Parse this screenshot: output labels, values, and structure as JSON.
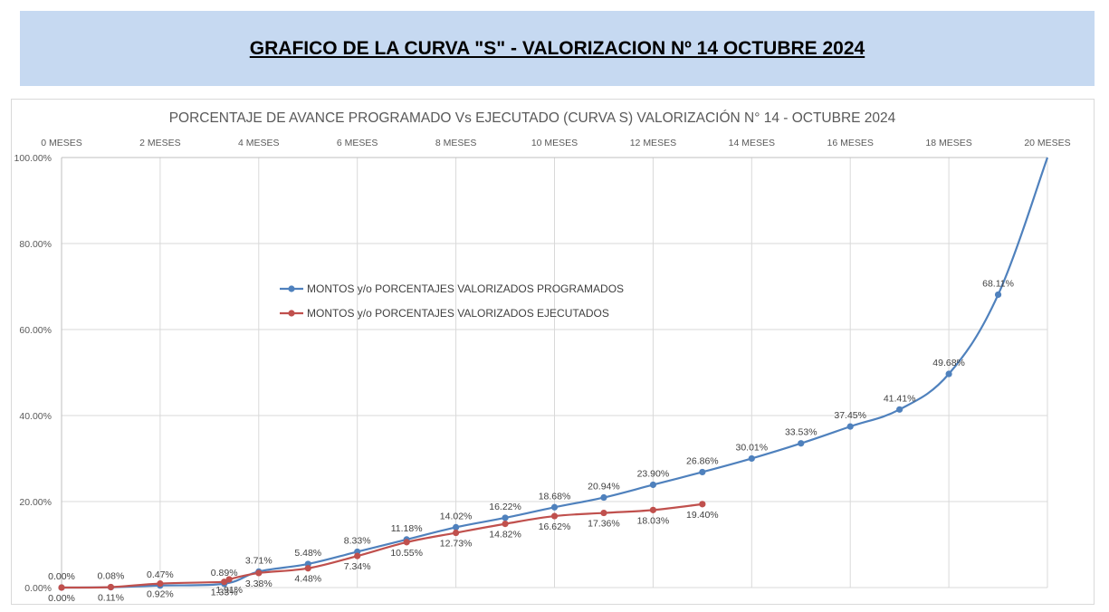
{
  "header": {
    "title": "GRAFICO DE LA CURVA \"S\" - VALORIZACION Nº 14 OCTUBRE 2024"
  },
  "chart_data": {
    "type": "line",
    "title": "PORCENTAJE DE AVANCE PROGRAMADO Vs EJECUTADO (CURVA S) VALORIZACIÓN N° 14 - OCTUBRE 2024",
    "xlabel": "",
    "ylabel": "",
    "x_axis_position": "top",
    "x_ticks": [
      "0 MESES",
      "2 MESES",
      "4 MESES",
      "6 MESES",
      "8 MESES",
      "10 MESES",
      "12 MESES",
      "14 MESES",
      "16 MESES",
      "18 MESES",
      "20 MESES"
    ],
    "x_tick_values": [
      0,
      2,
      4,
      6,
      8,
      10,
      12,
      14,
      16,
      18,
      20
    ],
    "y_ticks": [
      "0.00%",
      "20.00%",
      "40.00%",
      "60.00%",
      "80.00%",
      "100.00%"
    ],
    "y_tick_values": [
      0,
      20,
      40,
      60,
      80,
      100
    ],
    "xlim": [
      0,
      20
    ],
    "ylim": [
      0,
      100
    ],
    "grid": true,
    "legend_position": "upper-left-inside",
    "series": [
      {
        "name": "MONTOS y/o PORCENTAJES VALORIZADOS PROGRAMADOS",
        "color": "#4f81bd",
        "points": [
          {
            "x": 0,
            "y": 0.0,
            "label": "0.00%"
          },
          {
            "x": 1,
            "y": 0.08,
            "label": "0.08%"
          },
          {
            "x": 2,
            "y": 0.47,
            "label": "0.47%"
          },
          {
            "x": 3.3,
            "y": 0.89,
            "label": "0.89%"
          },
          {
            "x": 4,
            "y": 3.71,
            "label": "3.71%"
          },
          {
            "x": 5,
            "y": 5.48,
            "label": "5.48%"
          },
          {
            "x": 6,
            "y": 8.33,
            "label": "8.33%"
          },
          {
            "x": 7,
            "y": 11.18,
            "label": "11.18%"
          },
          {
            "x": 8,
            "y": 14.02,
            "label": "14.02%"
          },
          {
            "x": 9,
            "y": 16.22,
            "label": "16.22%"
          },
          {
            "x": 10,
            "y": 18.68,
            "label": "18.68%"
          },
          {
            "x": 11,
            "y": 20.94,
            "label": "20.94%"
          },
          {
            "x": 12,
            "y": 23.9,
            "label": "23.90%"
          },
          {
            "x": 13,
            "y": 26.86,
            "label": "26.86%"
          },
          {
            "x": 14,
            "y": 30.01,
            "label": "30.01%"
          },
          {
            "x": 15,
            "y": 33.53,
            "label": "33.53%"
          },
          {
            "x": 16,
            "y": 37.45,
            "label": "37.45%"
          },
          {
            "x": 17,
            "y": 41.41,
            "label": "41.41%"
          },
          {
            "x": 18,
            "y": 49.68,
            "label": "49.68%"
          },
          {
            "x": 19,
            "y": 68.11,
            "label": "68.11%"
          },
          {
            "x": 20,
            "y": 100.0,
            "label": ""
          }
        ]
      },
      {
        "name": "MONTOS y/o PORCENTAJES VALORIZADOS EJECUTADOS",
        "color": "#c0504d",
        "points": [
          {
            "x": 0,
            "y": 0.0,
            "label": "0.00%"
          },
          {
            "x": 1,
            "y": 0.11,
            "label": "0.11%"
          },
          {
            "x": 2,
            "y": 0.92,
            "label": "0.92%"
          },
          {
            "x": 3.3,
            "y": 1.33,
            "label": "1.33%"
          },
          {
            "x": 3.4,
            "y": 1.91,
            "label": "1.91%"
          },
          {
            "x": 4,
            "y": 3.38,
            "label": "3.38%"
          },
          {
            "x": 5,
            "y": 4.48,
            "label": "4.48%"
          },
          {
            "x": 6,
            "y": 7.34,
            "label": "7.34%"
          },
          {
            "x": 7,
            "y": 10.55,
            "label": "10.55%"
          },
          {
            "x": 8,
            "y": 12.73,
            "label": "12.73%"
          },
          {
            "x": 9,
            "y": 14.82,
            "label": "14.82%"
          },
          {
            "x": 10,
            "y": 16.62,
            "label": "16.62%"
          },
          {
            "x": 11,
            "y": 17.36,
            "label": "17.36%"
          },
          {
            "x": 12,
            "y": 18.03,
            "label": "18.03%"
          },
          {
            "x": 13,
            "y": 19.4,
            "label": "19.40%"
          }
        ]
      }
    ]
  }
}
